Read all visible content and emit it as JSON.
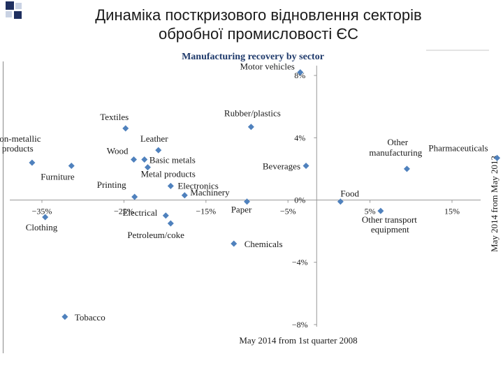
{
  "slide": {
    "title_line1": "Динаміка посткризового відновлення секторів",
    "title_line2": "обробної промисловості ЄС"
  },
  "colors": {
    "marker": "#4f81bd",
    "axis": "#999999",
    "text": "#1a1a1a",
    "chart_title": "#1f3a6b",
    "deco_dark": "#1f2f5f",
    "deco_light": "#c9d2e3"
  },
  "chart_data": {
    "type": "scatter",
    "title": "Manufacturing recovery by sector",
    "xlabel": "May 2014 from 1st quarter 2008",
    "ylabel": "May 2014 from May 2013",
    "xlim": [
      -38,
      18
    ],
    "ylim": [
      -8.5,
      9
    ],
    "xticks": [
      {
        "value": -35,
        "label": "−35%"
      },
      {
        "value": -25,
        "label": "−25%"
      },
      {
        "value": -15,
        "label": "−15%"
      },
      {
        "value": -5,
        "label": "−5%"
      },
      {
        "value": 5,
        "label": "5%"
      },
      {
        "value": 15,
        "label": "15%"
      }
    ],
    "yticks": [
      {
        "value": 8,
        "label": "8%"
      },
      {
        "value": 4,
        "label": "4%"
      },
      {
        "value": 0,
        "label": "0%"
      },
      {
        "value": -4,
        "label": "−4%"
      },
      {
        "value": -8,
        "label": "−8%"
      }
    ],
    "points": [
      {
        "label": "Motor vehicles",
        "x": -3.5,
        "y": 8.2
      },
      {
        "label": "Rubber/plastics",
        "x": -9.5,
        "y": 4.7
      },
      {
        "label": "Textiles",
        "x": -24.8,
        "y": 4.6
      },
      {
        "label": "Leather",
        "x": -20.8,
        "y": 3.2
      },
      {
        "label": "Wood",
        "x": -23.8,
        "y": 2.6
      },
      {
        "label": "Basic metals",
        "x": -22.5,
        "y": 2.6
      },
      {
        "label": "Metal products",
        "x": -22.1,
        "y": 2.1
      },
      {
        "label": "Other non-metallic mineral products",
        "x": -36.2,
        "y": 2.4
      },
      {
        "label": "Furniture",
        "x": -31.4,
        "y": 2.2
      },
      {
        "label": "Beverages",
        "x": -2.8,
        "y": 2.2
      },
      {
        "label": "Electronics",
        "x": -19.3,
        "y": 0.9
      },
      {
        "label": "Machinery",
        "x": -17.6,
        "y": 0.3
      },
      {
        "label": "Printing",
        "x": -23.7,
        "y": 0.2
      },
      {
        "label": "Paper",
        "x": -10.0,
        "y": -0.1
      },
      {
        "label": "Food",
        "x": 1.4,
        "y": -0.1
      },
      {
        "label": "Electrical",
        "x": -19.9,
        "y": -1.0
      },
      {
        "label": "Petroleum/coke",
        "x": -19.3,
        "y": -1.5
      },
      {
        "label": "Clothing",
        "x": -34.6,
        "y": -1.1
      },
      {
        "label": "Other transport equipment",
        "x": 6.3,
        "y": -0.7
      },
      {
        "label": "Other manufacturing",
        "x": 9.5,
        "y": 2.0
      },
      {
        "label": "Pharmaceuticals",
        "x": 20.5,
        "y": 2.7
      },
      {
        "label": "Chemicals",
        "x": -11.6,
        "y": -2.8
      },
      {
        "label": "Tobacco",
        "x": -32.2,
        "y": -7.5
      }
    ]
  }
}
